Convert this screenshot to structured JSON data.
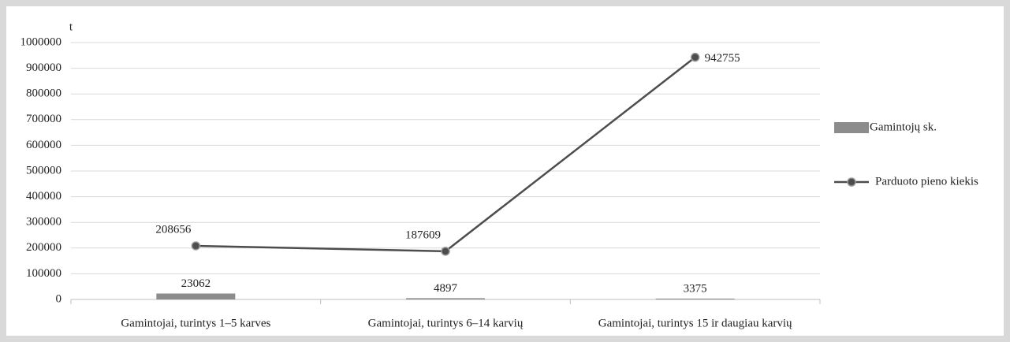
{
  "chart_data": {
    "type": "combo",
    "y_label": "t",
    "categories": [
      "Gamintojai, turintys 1–5 karves",
      "Gamintojai, turintys 6–14 karvių",
      "Gamintojai, turintys 15 ir daugiau karvių"
    ],
    "series": [
      {
        "name": "Gamintojų sk.",
        "type": "bar",
        "color": "#8c8c8c",
        "values": [
          23062,
          4897,
          3375
        ]
      },
      {
        "name": "Parduoto pieno kiekis",
        "type": "line",
        "color": "#4d4d4d",
        "values": [
          208656,
          187609,
          942755
        ]
      }
    ],
    "ylim": [
      0,
      1000000
    ],
    "yticks": [
      0,
      100000,
      200000,
      300000,
      400000,
      500000,
      600000,
      700000,
      800000,
      900000,
      1000000
    ],
    "grid": true,
    "legend": "right"
  }
}
